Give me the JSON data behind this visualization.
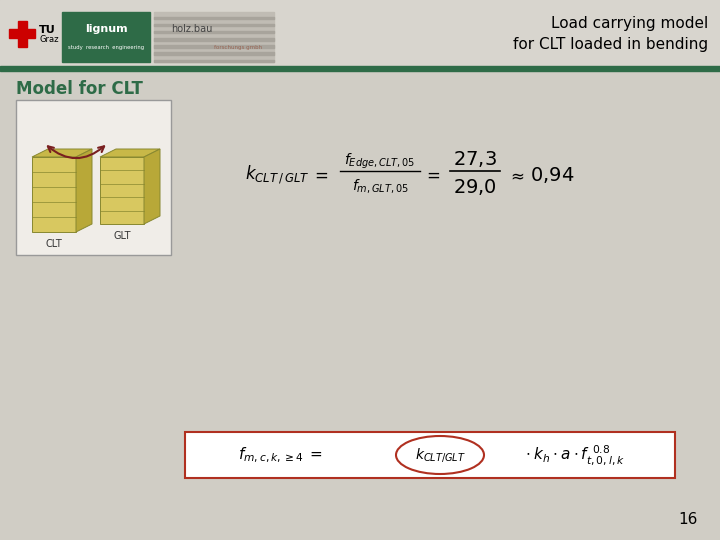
{
  "bg_color": "#d0cdc5",
  "title_text": "Load carrying model\nfor CLT loaded in bending",
  "title_color": "#000000",
  "title_fontsize": 11,
  "header_line_color": "#2e6b47",
  "section_title": "Model for CLT",
  "section_title_color": "#2e6b47",
  "section_title_fontsize": 12,
  "box_color": "#b03020",
  "ellipse_color": "#b03020",
  "page_num": "16",
  "white_box_color": "#ffffff",
  "lignum_green": "#2e6b47",
  "red_cross": "#cc0000"
}
